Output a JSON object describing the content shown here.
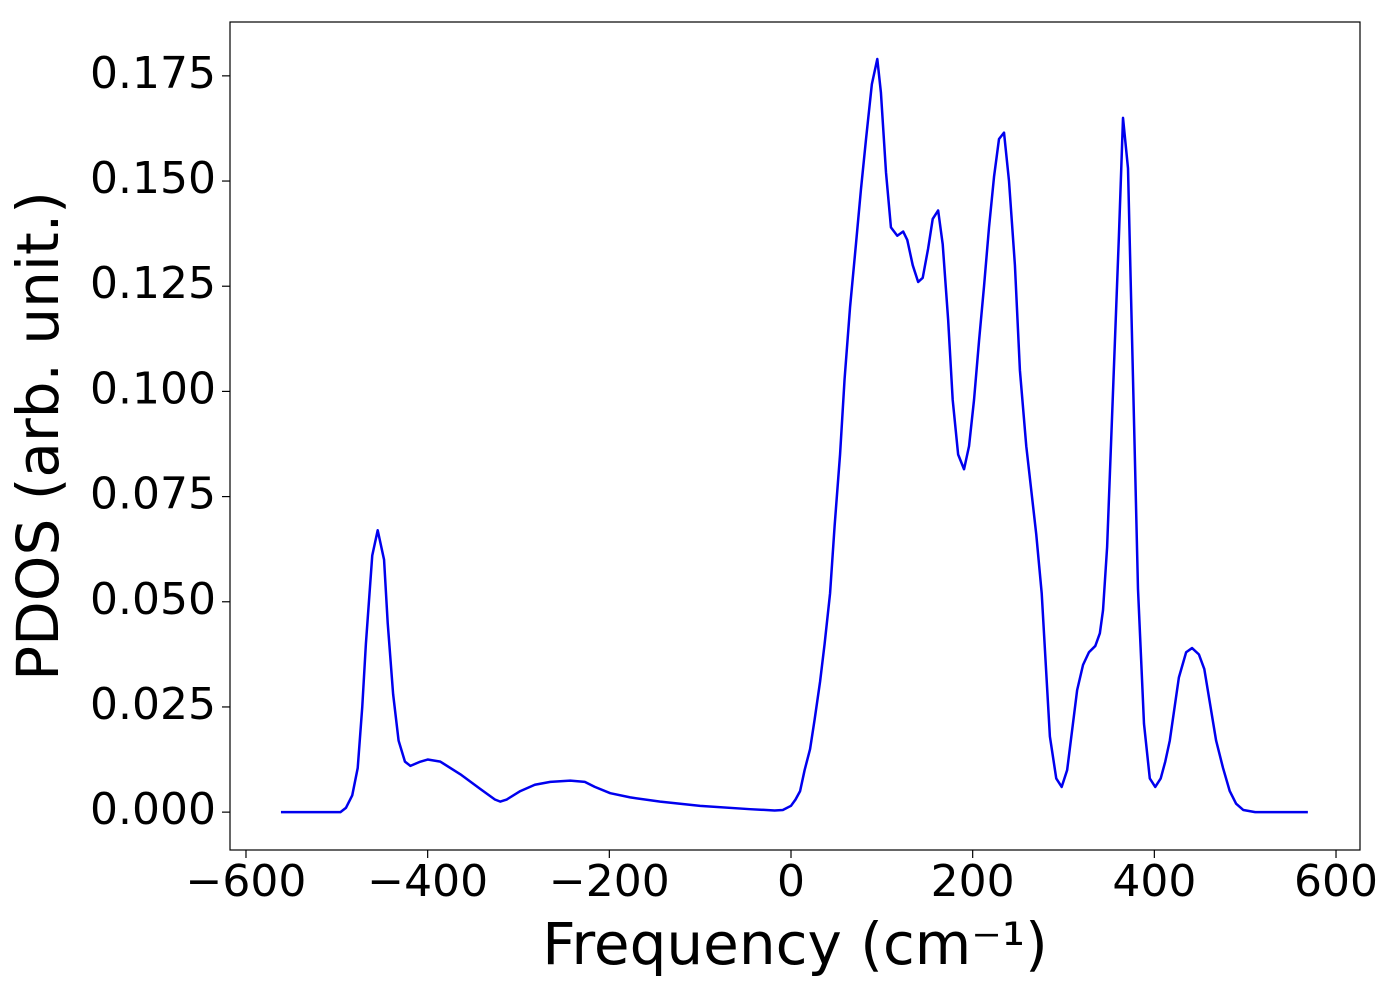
{
  "chart_data": {
    "type": "line",
    "xlabel": "Frequency (cm⁻¹)",
    "ylabel": "PDOS (arb. unit.)",
    "xlim": [
      -617.6,
      626.4
    ],
    "ylim": [
      -0.009,
      0.1878
    ],
    "xticks": [
      {
        "value": -600,
        "label": "−600"
      },
      {
        "value": -400,
        "label": "−400"
      },
      {
        "value": -200,
        "label": "−200"
      },
      0,
      200,
      400,
      600
    ],
    "yticks": [
      {
        "value": 0,
        "label": "0.000"
      },
      {
        "value": 0.025,
        "label": "0.025"
      },
      {
        "value": 0.05,
        "label": "0.050"
      },
      {
        "value": 0.075,
        "label": "0.075"
      },
      {
        "value": 0.1,
        "label": "0.100"
      },
      {
        "value": 0.125,
        "label": "0.125"
      },
      {
        "value": 0.15,
        "label": "0.150"
      },
      {
        "value": 0.175,
        "label": "0.175"
      }
    ],
    "series": [
      {
        "color": "#0000ee",
        "x": [
          -561.5,
          -496,
          -490,
          -483,
          -477,
          -472,
          -468,
          -461,
          -455,
          -448,
          -444,
          -438,
          -432,
          -425,
          -419,
          -408,
          -400,
          -386,
          -364,
          -342,
          -326,
          -320,
          -313,
          -298,
          -282,
          -265,
          -243,
          -227,
          -216,
          -199,
          -177,
          -144,
          -100,
          -45,
          -18,
          -9,
          0,
          5,
          10,
          15,
          21,
          26,
          32,
          37,
          43,
          48,
          54,
          59,
          65,
          71.5,
          77,
          82.6,
          89,
          95,
          99,
          104.6,
          110,
          117,
          123.5,
          128,
          134,
          140,
          145,
          151,
          156,
          162,
          167,
          173,
          178,
          184,
          190.5,
          196,
          201.5,
          207,
          212.5,
          218,
          223.5,
          229,
          234.5,
          240,
          246.5,
          252,
          259,
          270,
          276,
          285,
          292,
          298,
          304,
          315,
          321.5,
          328,
          335,
          340,
          343.5,
          348,
          361,
          365.5,
          371,
          382,
          388.6,
          395,
          401,
          407,
          412,
          417,
          427,
          435,
          441.5,
          449,
          455,
          468,
          475.6,
          483,
          490,
          498,
          511,
          569
        ],
        "values": [
          0,
          0,
          0.001,
          0.004,
          0.0105,
          0.025,
          0.04,
          0.061,
          0.067,
          0.06,
          0.045,
          0.028,
          0.017,
          0.012,
          0.011,
          0.012,
          0.0125,
          0.012,
          0.009,
          0.0055,
          0.003,
          0.0025,
          0.003,
          0.005,
          0.0065,
          0.0072,
          0.0075,
          0.0072,
          0.006,
          0.0045,
          0.0035,
          0.0025,
          0.0015,
          0.0007,
          0.0004,
          0.0005,
          0.0015,
          0.003,
          0.005,
          0.01,
          0.015,
          0.022,
          0.031,
          0.04,
          0.052,
          0.068,
          0.085,
          0.103,
          0.12,
          0.135,
          0.148,
          0.16,
          0.173,
          0.179,
          0.171,
          0.152,
          0.139,
          0.137,
          0.138,
          0.136,
          0.13,
          0.126,
          0.127,
          0.134,
          0.141,
          0.143,
          0.135,
          0.117,
          0.098,
          0.085,
          0.0815,
          0.087,
          0.098,
          0.112,
          0.125,
          0.139,
          0.151,
          0.16,
          0.1615,
          0.15,
          0.13,
          0.105,
          0.087,
          0.066,
          0.052,
          0.018,
          0.008,
          0.006,
          0.01,
          0.029,
          0.035,
          0.038,
          0.0395,
          0.0425,
          0.048,
          0.063,
          0.137,
          0.165,
          0.153,
          0.053,
          0.021,
          0.008,
          0.006,
          0.008,
          0.012,
          0.017,
          0.032,
          0.038,
          0.039,
          0.0375,
          0.034,
          0.017,
          0.0105,
          0.005,
          0.002,
          0.0005,
          0,
          0
        ]
      }
    ]
  }
}
